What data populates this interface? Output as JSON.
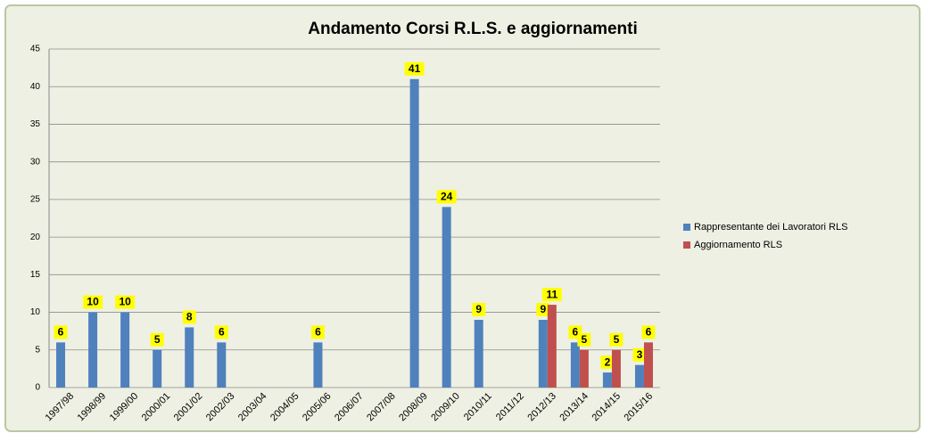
{
  "chart_data": {
    "type": "bar",
    "title": "Andamento Corsi R.L.S.  e aggiornamenti",
    "categories": [
      "1997/98",
      "1998/99",
      "1999/00",
      "2000/01",
      "2001/02",
      "2002/03",
      "2003/04",
      "2004/05",
      "2005/06",
      "2006/07",
      "2007/08",
      "2008/09",
      "2009/10",
      "2010/11",
      "2011/12",
      "2012/13",
      "2013/14",
      "2014/15",
      "2015/16"
    ],
    "series": [
      {
        "name": "Rappresentante dei Lavoratori RLS",
        "color": "#4f81bd",
        "values": [
          6,
          10,
          10,
          5,
          8,
          6,
          null,
          null,
          6,
          null,
          null,
          41,
          24,
          9,
          null,
          9,
          6,
          2,
          3
        ]
      },
      {
        "name": "Aggiornamento RLS",
        "color": "#c0504d",
        "values": [
          null,
          null,
          null,
          null,
          null,
          null,
          null,
          null,
          null,
          null,
          null,
          null,
          null,
          null,
          null,
          11,
          5,
          5,
          6
        ]
      }
    ],
    "ylim": [
      0,
      45
    ],
    "yticks": [
      0,
      5,
      10,
      15,
      20,
      25,
      30,
      35,
      40,
      45
    ],
    "grid": true,
    "legend": "right"
  }
}
